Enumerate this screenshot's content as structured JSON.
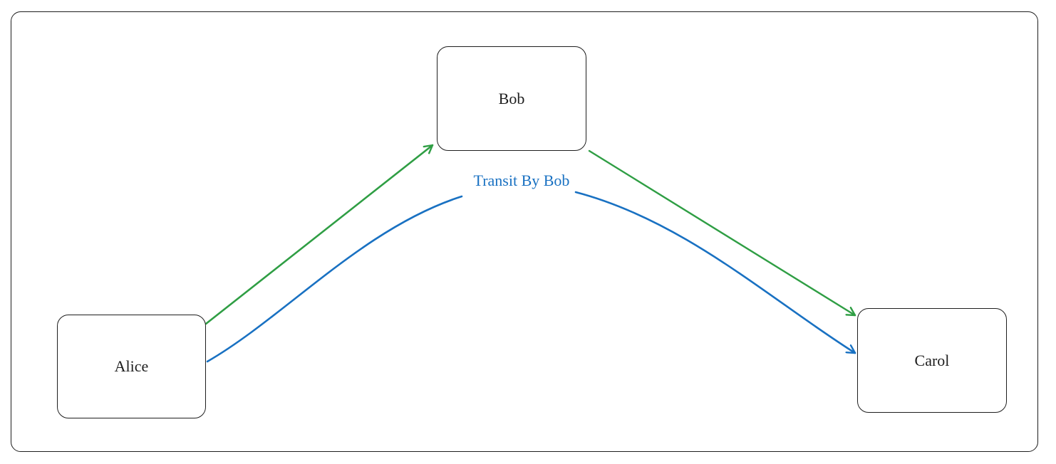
{
  "nodes": {
    "bob": {
      "label": "Bob"
    },
    "alice": {
      "label": "Alice"
    },
    "carol": {
      "label": "Carol"
    }
  },
  "edges": {
    "transit_label": "Transit By Bob"
  },
  "colors": {
    "stroke": "#1e1e1e",
    "direct_edge": "#2f9e44",
    "transit_edge": "#1971c2"
  }
}
